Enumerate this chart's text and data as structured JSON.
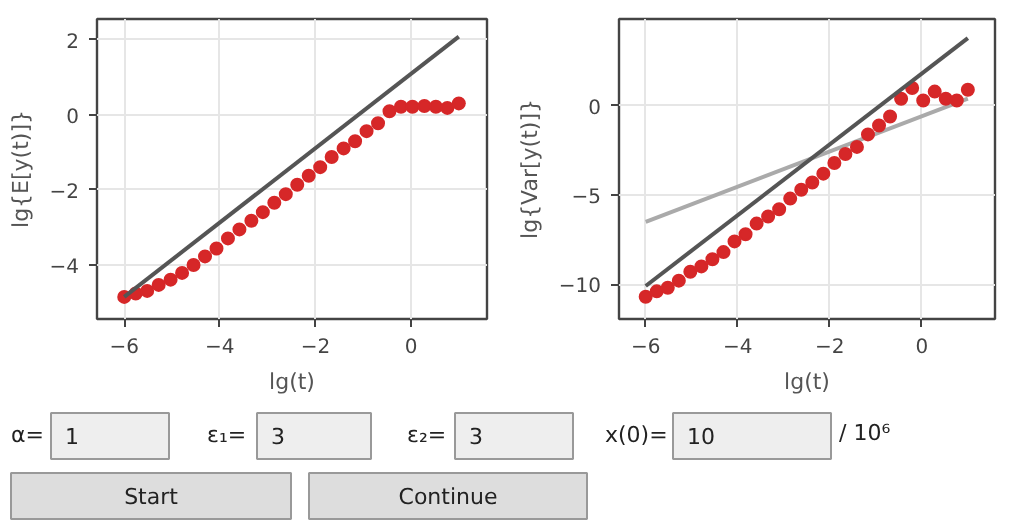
{
  "chart_data": [
    {
      "type": "scatter",
      "xlabel": "lg(t)",
      "ylabel": "lg{E[y(t)]}",
      "xlim": [
        -6.57,
        1.59
      ],
      "ylim": [
        -5.45,
        2.55
      ],
      "xticks": [
        {
          "value": -6,
          "label": "−6"
        },
        {
          "value": -4,
          "label": "−4"
        },
        {
          "value": -2,
          "label": "−2"
        },
        0
      ],
      "yticks": [
        {
          "value": -4,
          "label": "−4"
        },
        {
          "value": -2,
          "label": "−2"
        },
        0,
        2
      ],
      "grid": true,
      "series": [
        {
          "type": "scatter",
          "marker": "circle",
          "color": "#d62728",
          "x": [
            -6.0,
            -5.76,
            -5.52,
            -5.28,
            -5.03,
            -4.79,
            -4.55,
            -4.31,
            -4.07,
            -3.83,
            -3.59,
            -3.34,
            -3.1,
            -2.86,
            -2.62,
            -2.38,
            -2.14,
            -1.9,
            -1.66,
            -1.41,
            -1.17,
            -0.93,
            -0.69,
            -0.45,
            -0.21,
            0.03,
            0.28,
            0.52,
            0.76,
            1.0
          ],
          "values": [
            -4.86,
            -4.77,
            -4.7,
            -4.54,
            -4.4,
            -4.22,
            -4.01,
            -3.78,
            -3.57,
            -3.3,
            -3.06,
            -2.83,
            -2.6,
            -2.35,
            -2.12,
            -1.87,
            -1.63,
            -1.4,
            -1.13,
            -0.9,
            -0.71,
            -0.44,
            -0.23,
            0.09,
            0.21,
            0.21,
            0.23,
            0.21,
            0.18,
            0.3
          ]
        },
        {
          "type": "line",
          "marker": "none",
          "color": "#555555",
          "x": [
            -6,
            1
          ],
          "values": [
            -4.86,
            2.08
          ]
        }
      ]
    },
    {
      "type": "scatter",
      "xlabel": "lg(t)",
      "ylabel": "lg{Var[y(t)]}",
      "xlim": [
        -6.58,
        1.59
      ],
      "ylim": [
        -11.95,
        4.87
      ],
      "xticks": [
        {
          "value": -6,
          "label": "−6"
        },
        {
          "value": -4,
          "label": "−4"
        },
        {
          "value": -2,
          "label": "−2"
        },
        0
      ],
      "yticks": [
        {
          "value": -10,
          "label": "−10"
        },
        {
          "value": -5,
          "label": "−5"
        },
        0
      ],
      "grid": true,
      "series": [
        {
          "type": "line",
          "marker": "none",
          "color": "#aaaaaa",
          "x": [
            -6,
            1
          ],
          "values": [
            -6.5,
            0.4
          ]
        },
        {
          "type": "scatter",
          "marker": "circle",
          "color": "#d62728",
          "x": [
            -6.0,
            -5.76,
            -5.52,
            -5.28,
            -5.03,
            -4.79,
            -4.55,
            -4.31,
            -4.07,
            -3.83,
            -3.59,
            -3.34,
            -3.1,
            -2.86,
            -2.62,
            -2.38,
            -2.14,
            -1.9,
            -1.66,
            -1.41,
            -1.17,
            -0.93,
            -0.69,
            -0.45,
            -0.21,
            0.03,
            0.28,
            0.52,
            0.76,
            1.0
          ],
          "values": [
            -10.7,
            -10.4,
            -10.2,
            -9.8,
            -9.3,
            -9.0,
            -8.6,
            -8.2,
            -7.6,
            -7.2,
            -6.6,
            -6.2,
            -5.8,
            -5.2,
            -4.7,
            -4.3,
            -3.8,
            -3.2,
            -2.7,
            -2.3,
            -1.6,
            -1.1,
            -0.6,
            0.4,
            1.0,
            0.3,
            0.8,
            0.4,
            0.3,
            0.9
          ]
        },
        {
          "type": "line",
          "marker": "none",
          "color": "#555555",
          "x": [
            -6,
            1
          ],
          "values": [
            -10.1,
            3.8
          ]
        }
      ]
    },
    {
      "type": "other",
      "annotations": [
        "α=",
        "1",
        "ε₁=",
        "3",
        "ε₂=",
        "3",
        "x(0)=",
        "10",
        "/ 10⁶",
        "Start",
        "Continue"
      ]
    }
  ]
}
